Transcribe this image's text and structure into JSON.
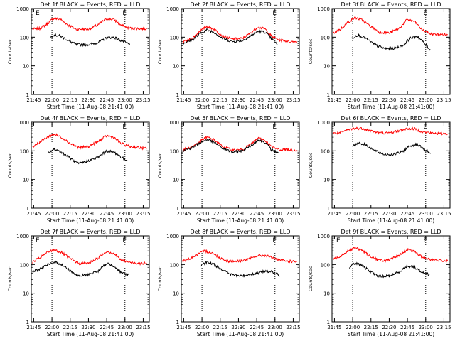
{
  "figure": {
    "x_ticks": [
      "21:45",
      "22:00",
      "22:15",
      "22:30",
      "22:45",
      "23:00",
      "23:15"
    ],
    "y_ticks": [
      "1",
      "10",
      "100",
      "1000"
    ],
    "ylabel": "Counts/sec",
    "xlabel": "Start Time (11-Aug-08 21:41:00)",
    "colors": {
      "events": "#000000",
      "lld": "#ff0000",
      "frame": "#000000"
    }
  },
  "chart_data": [
    {
      "type": "line",
      "title": "Det 1f BLACK = Events, RED = LLD",
      "xlabel": "Start Time (11-Aug-08 21:41:00)",
      "ylabel": "Counts/sec",
      "yscale": "log",
      "ylim": [
        1,
        1000
      ],
      "xlim": [
        "21:43",
        "23:20"
      ],
      "markers": [
        "E",
        "E"
      ],
      "series": [
        {
          "name": "Events",
          "color": "#000000",
          "x": [
            "21:59",
            "22:01",
            "22:07",
            "22:15",
            "22:20",
            "22:30",
            "22:38",
            "22:45",
            "22:51",
            "22:57",
            "23:04"
          ],
          "values": [
            100,
            120,
            110,
            70,
            55,
            55,
            65,
            95,
            100,
            75,
            55
          ]
        },
        {
          "name": "LLD",
          "color": "#ff0000",
          "x": [
            "21:44",
            "21:50",
            "21:56",
            "22:01",
            "22:07",
            "22:13",
            "22:20",
            "22:30",
            "22:38",
            "22:45",
            "22:51",
            "22:57",
            "23:03",
            "23:10",
            "23:18"
          ],
          "values": [
            190,
            200,
            290,
            450,
            420,
            270,
            190,
            190,
            270,
            450,
            410,
            260,
            210,
            200,
            195
          ]
        }
      ]
    },
    {
      "type": "line",
      "title": "Det 2f BLACK = Events, RED = LLD",
      "xlabel": "Start Time (11-Aug-08 21:41:00)",
      "ylabel": "Counts/sec",
      "yscale": "log",
      "ylim": [
        1,
        1000
      ],
      "xlim": [
        "21:43",
        "23:20"
      ],
      "markers": [
        "E"
      ],
      "series": [
        {
          "name": "Events",
          "color": "#000000",
          "x": [
            "21:44",
            "21:52",
            "21:58",
            "22:04",
            "22:10",
            "22:17",
            "22:25",
            "22:33",
            "22:40",
            "22:46",
            "22:52",
            "22:57",
            "23:02"
          ],
          "values": [
            60,
            80,
            130,
            180,
            150,
            90,
            70,
            75,
            110,
            160,
            150,
            90,
            55
          ]
        },
        {
          "name": "LLD",
          "color": "#ff0000",
          "x": [
            "21:44",
            "21:52",
            "21:58",
            "22:04",
            "22:10",
            "22:17",
            "22:25",
            "22:33",
            "22:40",
            "22:46",
            "22:52",
            "22:58",
            "23:04",
            "23:12",
            "23:18"
          ],
          "values": [
            65,
            90,
            160,
            240,
            190,
            110,
            85,
            90,
            140,
            230,
            190,
            100,
            80,
            70,
            70
          ]
        }
      ]
    },
    {
      "type": "line",
      "title": "Det 3f BLACK = Events, RED = LLD",
      "xlabel": "Start Time (11-Aug-08 21:41:00)",
      "ylabel": "Counts/sec",
      "yscale": "log",
      "ylim": [
        1,
        1000
      ],
      "xlim": [
        "21:43",
        "23:20"
      ],
      "markers": [
        "E"
      ],
      "series": [
        {
          "name": "Events",
          "color": "#000000",
          "x": [
            "21:59",
            "22:04",
            "22:10",
            "22:18",
            "22:26",
            "22:34",
            "22:41",
            "22:47",
            "22:53",
            "22:59",
            "23:04"
          ],
          "values": [
            90,
            120,
            95,
            55,
            40,
            40,
            50,
            90,
            110,
            60,
            35
          ]
        },
        {
          "name": "LLD",
          "color": "#ff0000",
          "x": [
            "21:44",
            "21:50",
            "21:56",
            "22:02",
            "22:08",
            "22:15",
            "22:22",
            "22:30",
            "22:38",
            "22:45",
            "22:51",
            "22:57",
            "23:04",
            "23:12",
            "23:18"
          ],
          "values": [
            140,
            190,
            330,
            480,
            390,
            230,
            150,
            140,
            200,
            420,
            350,
            180,
            130,
            125,
            120
          ]
        }
      ]
    },
    {
      "type": "line",
      "title": "Det 4f BLACK = Events, RED = LLD",
      "xlabel": "Start Time (11-Aug-08 21:41:00)",
      "ylabel": "Counts/sec",
      "yscale": "log",
      "ylim": [
        1,
        1000
      ],
      "xlim": [
        "21:43",
        "23:20"
      ],
      "markers": [
        "E"
      ],
      "series": [
        {
          "name": "Events",
          "color": "#000000",
          "x": [
            "21:57",
            "22:02",
            "22:08",
            "22:15",
            "22:22",
            "22:30",
            "22:38",
            "22:45",
            "22:51",
            "22:57",
            "23:02"
          ],
          "values": [
            85,
            115,
            90,
            55,
            35,
            45,
            60,
            100,
            90,
            60,
            45
          ]
        },
        {
          "name": "LLD",
          "color": "#ff0000",
          "x": [
            "21:44",
            "21:50",
            "21:56",
            "22:02",
            "22:08",
            "22:15",
            "22:22",
            "22:30",
            "22:38",
            "22:45",
            "22:51",
            "22:57",
            "23:04",
            "23:12",
            "23:18"
          ],
          "values": [
            140,
            200,
            300,
            380,
            300,
            180,
            130,
            140,
            210,
            340,
            290,
            180,
            140,
            130,
            120
          ]
        }
      ]
    },
    {
      "type": "line",
      "title": "Det 5f BLACK = Events, RED = LLD",
      "xlabel": "Start Time (11-Aug-08 21:41:00)",
      "ylabel": "Counts/sec",
      "yscale": "log",
      "ylim": [
        1,
        1000
      ],
      "xlim": [
        "21:43",
        "23:20"
      ],
      "markers": [
        "E"
      ],
      "series": [
        {
          "name": "Events",
          "color": "#000000",
          "x": [
            "21:44",
            "21:52",
            "21:58",
            "22:04",
            "22:10",
            "22:17",
            "22:25",
            "22:33",
            "22:40",
            "22:46",
            "22:52",
            "22:57",
            "23:03"
          ],
          "values": [
            100,
            130,
            190,
            250,
            200,
            120,
            90,
            100,
            150,
            240,
            200,
            110,
            85
          ]
        },
        {
          "name": "LLD",
          "color": "#ff0000",
          "x": [
            "21:44",
            "21:52",
            "21:58",
            "22:04",
            "22:10",
            "22:17",
            "22:25",
            "22:33",
            "22:40",
            "22:46",
            "22:52",
            "22:58",
            "23:04",
            "23:12",
            "23:18"
          ],
          "values": [
            105,
            140,
            210,
            300,
            240,
            140,
            105,
            110,
            170,
            280,
            230,
            130,
            110,
            110,
            105
          ]
        }
      ]
    },
    {
      "type": "line",
      "title": "Det 6f BLACK = Events, RED = LLD",
      "xlabel": "Start Time (11-Aug-08 21:41:00)",
      "ylabel": "Counts/sec",
      "yscale": "log",
      "ylim": [
        1,
        1000
      ],
      "xlim": [
        "21:43",
        "23:20"
      ],
      "markers": [
        "E"
      ],
      "series": [
        {
          "name": "Events",
          "color": "#000000",
          "x": [
            "22:00",
            "22:05",
            "22:11",
            "22:18",
            "22:26",
            "22:34",
            "22:41",
            "22:47",
            "22:53",
            "22:59",
            "23:04"
          ],
          "values": [
            150,
            190,
            160,
            100,
            75,
            75,
            95,
            150,
            170,
            110,
            80
          ]
        },
        {
          "name": "LLD",
          "color": "#ff0000",
          "x": [
            "21:44",
            "21:50",
            "21:56",
            "22:02",
            "22:08",
            "22:15",
            "22:22",
            "22:30",
            "22:38",
            "22:45",
            "22:51",
            "22:57",
            "23:04",
            "23:12",
            "23:18"
          ],
          "values": [
            400,
            430,
            530,
            620,
            600,
            500,
            420,
            420,
            500,
            600,
            580,
            470,
            420,
            400,
            400
          ]
        }
      ]
    },
    {
      "type": "line",
      "title": "Det 7f BLACK = Events, RED = LLD",
      "xlabel": "Start Time (11-Aug-08 21:41:00)",
      "ylabel": "Counts/sec",
      "yscale": "log",
      "ylim": [
        1,
        1000
      ],
      "xlim": [
        "21:43",
        "23:20"
      ],
      "markers": [
        "E",
        "E"
      ],
      "series": [
        {
          "name": "Events",
          "color": "#000000",
          "x": [
            "21:44",
            "21:50",
            "21:57",
            "22:02",
            "22:08",
            "22:15",
            "22:22",
            "22:30",
            "22:38",
            "22:45",
            "22:51",
            "22:57",
            "23:03"
          ],
          "values": [
            55,
            70,
            100,
            125,
            100,
            60,
            40,
            45,
            60,
            110,
            90,
            50,
            45
          ]
        },
        {
          "name": "LLD",
          "color": "#ff0000",
          "x": [
            "21:44",
            "21:50",
            "21:56",
            "22:02",
            "22:08",
            "22:15",
            "22:22",
            "22:30",
            "22:38",
            "22:45",
            "22:51",
            "22:57",
            "23:04",
            "23:12",
            "23:18"
          ],
          "values": [
            120,
            170,
            260,
            330,
            260,
            160,
            110,
            110,
            170,
            290,
            240,
            140,
            120,
            110,
            110
          ]
        }
      ]
    },
    {
      "type": "line",
      "title": "Det 8f BLACK = Events, RED = LLD",
      "xlabel": "Start Time (11-Aug-08 21:41:00)",
      "ylabel": "Counts/sec",
      "yscale": "log",
      "ylim": [
        1,
        1000
      ],
      "xlim": [
        "21:43",
        "23:20"
      ],
      "markers": [
        "E"
      ],
      "series": [
        {
          "name": "Events",
          "color": "#000000",
          "x": [
            "21:59",
            "22:04",
            "22:10",
            "22:17",
            "22:24",
            "22:32",
            "22:39",
            "22:46",
            "22:52",
            "22:58",
            "23:04"
          ],
          "values": [
            90,
            120,
            100,
            65,
            45,
            40,
            45,
            50,
            60,
            55,
            40
          ]
        },
        {
          "name": "LLD",
          "color": "#ff0000",
          "x": [
            "21:44",
            "21:50",
            "21:56",
            "22:02",
            "22:08",
            "22:15",
            "22:22",
            "22:30",
            "22:38",
            "22:45",
            "22:51",
            "22:57",
            "23:04",
            "23:12",
            "23:18"
          ],
          "values": [
            130,
            160,
            220,
            300,
            260,
            170,
            130,
            130,
            150,
            200,
            210,
            180,
            140,
            130,
            125
          ]
        }
      ]
    },
    {
      "type": "line",
      "title": "Det 9f BLACK = Events, RED = LLD",
      "xlabel": "Start Time (11-Aug-08 21:41:00)",
      "ylabel": "Counts/sec",
      "yscale": "log",
      "ylim": [
        1,
        1000
      ],
      "xlim": [
        "21:43",
        "23:20"
      ],
      "markers": [
        "E",
        "E"
      ],
      "series": [
        {
          "name": "Events",
          "color": "#000000",
          "x": [
            "21:57",
            "22:02",
            "22:08",
            "22:15",
            "22:22",
            "22:30",
            "22:38",
            "22:45",
            "22:51",
            "22:57",
            "23:03"
          ],
          "values": [
            80,
            110,
            90,
            55,
            38,
            40,
            55,
            90,
            80,
            55,
            45
          ]
        },
        {
          "name": "LLD",
          "color": "#ff0000",
          "x": [
            "21:44",
            "21:50",
            "21:56",
            "22:02",
            "22:08",
            "22:15",
            "22:22",
            "22:30",
            "22:38",
            "22:45",
            "22:51",
            "22:57",
            "23:04",
            "23:12",
            "23:18"
          ],
          "values": [
            150,
            200,
            300,
            380,
            310,
            190,
            140,
            140,
            210,
            330,
            280,
            180,
            150,
            140,
            135
          ]
        }
      ]
    }
  ]
}
